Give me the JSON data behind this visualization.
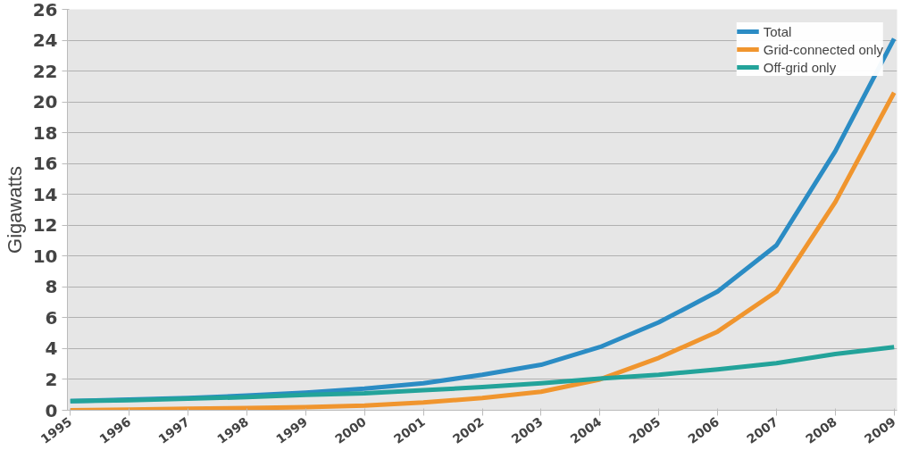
{
  "chart_data": {
    "type": "line",
    "ylabel": "Gigawatts",
    "categories": [
      "1995",
      "1996",
      "1997",
      "1998",
      "1999",
      "2000",
      "2001",
      "2002",
      "2003",
      "2004",
      "2005",
      "2006",
      "2007",
      "2008",
      "2009"
    ],
    "series": [
      {
        "name": "Total",
        "color": "#2b8cc4",
        "values": [
          0.6,
          0.7,
          0.8,
          0.95,
          1.15,
          1.4,
          1.75,
          2.3,
          2.95,
          4.1,
          5.7,
          7.7,
          10.7,
          16.8,
          24.1
        ]
      },
      {
        "name": "Grid-connected only",
        "color": "#f0952e",
        "values": [
          0.0,
          0.05,
          0.1,
          0.15,
          0.2,
          0.3,
          0.5,
          0.8,
          1.2,
          2.0,
          3.4,
          5.1,
          7.7,
          13.5,
          20.6
        ]
      },
      {
        "name": "Off-grid only",
        "color": "#23a39a",
        "values": [
          0.6,
          0.65,
          0.75,
          0.85,
          1.0,
          1.1,
          1.3,
          1.5,
          1.75,
          2.05,
          2.3,
          2.65,
          3.05,
          3.65,
          4.1
        ]
      }
    ],
    "ylim": [
      0,
      26
    ],
    "yticks": [
      0,
      2,
      4,
      6,
      8,
      10,
      12,
      14,
      16,
      18,
      20,
      22,
      24,
      26
    ],
    "grid": "y",
    "legend": "top right",
    "marker": "none",
    "line_style": "solid"
  }
}
